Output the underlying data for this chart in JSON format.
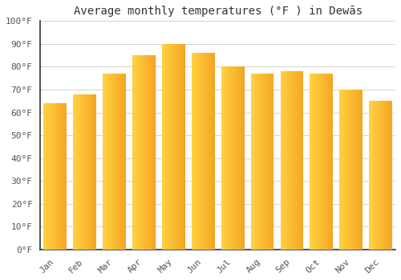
{
  "title": "Average monthly temperatures (°F ) in Dewās",
  "months": [
    "Jan",
    "Feb",
    "Mar",
    "Apr",
    "May",
    "Jun",
    "Jul",
    "Aug",
    "Sep",
    "Oct",
    "Nov",
    "Dec"
  ],
  "values": [
    64,
    68,
    77,
    85,
    90,
    86,
    80,
    77,
    78,
    77,
    70,
    65
  ],
  "bar_color_left": "#FFD040",
  "bar_color_right": "#F5A623",
  "bar_color_edge": "#E8A020",
  "ylim": [
    0,
    100
  ],
  "ytick_step": 10,
  "background_color": "#FFFFFF",
  "grid_color": "#CCCCCC",
  "title_fontsize": 10,
  "tick_fontsize": 8,
  "font_family": "monospace",
  "bar_width": 0.78
}
